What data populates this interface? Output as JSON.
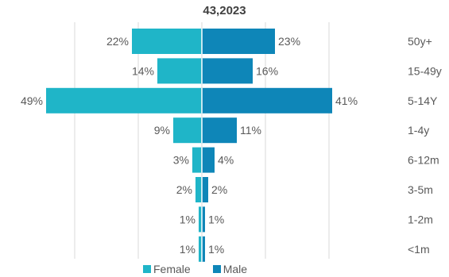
{
  "colors": {
    "female": "#1fb5c8",
    "male": "#0e86b8",
    "text": "#595959",
    "grid": "#d9d9d9"
  },
  "chart_data": {
    "type": "bar",
    "orientation": "horizontal",
    "title": "43,2023",
    "categories": [
      "50y+",
      "15-49y",
      "5-14Y",
      "1-4y",
      "6-12m",
      "3-5m",
      "1-2m",
      "<1m"
    ],
    "series": [
      {
        "name": "Female",
        "values": [
          22,
          14,
          49,
          9,
          3,
          2,
          1,
          1
        ]
      },
      {
        "name": "Male",
        "values": [
          23,
          16,
          41,
          11,
          4,
          2,
          1,
          1
        ]
      }
    ],
    "value_labels": {
      "Female": [
        "22%",
        "14%",
        "49%",
        "9%",
        "3%",
        "2%",
        "1%",
        "1%"
      ],
      "Male": [
        "23%",
        "16%",
        "41%",
        "11%",
        "4%",
        "2%",
        "1%",
        "1%"
      ]
    },
    "xlim": [
      -50,
      50
    ],
    "grid": true,
    "legend_position": "bottom"
  }
}
